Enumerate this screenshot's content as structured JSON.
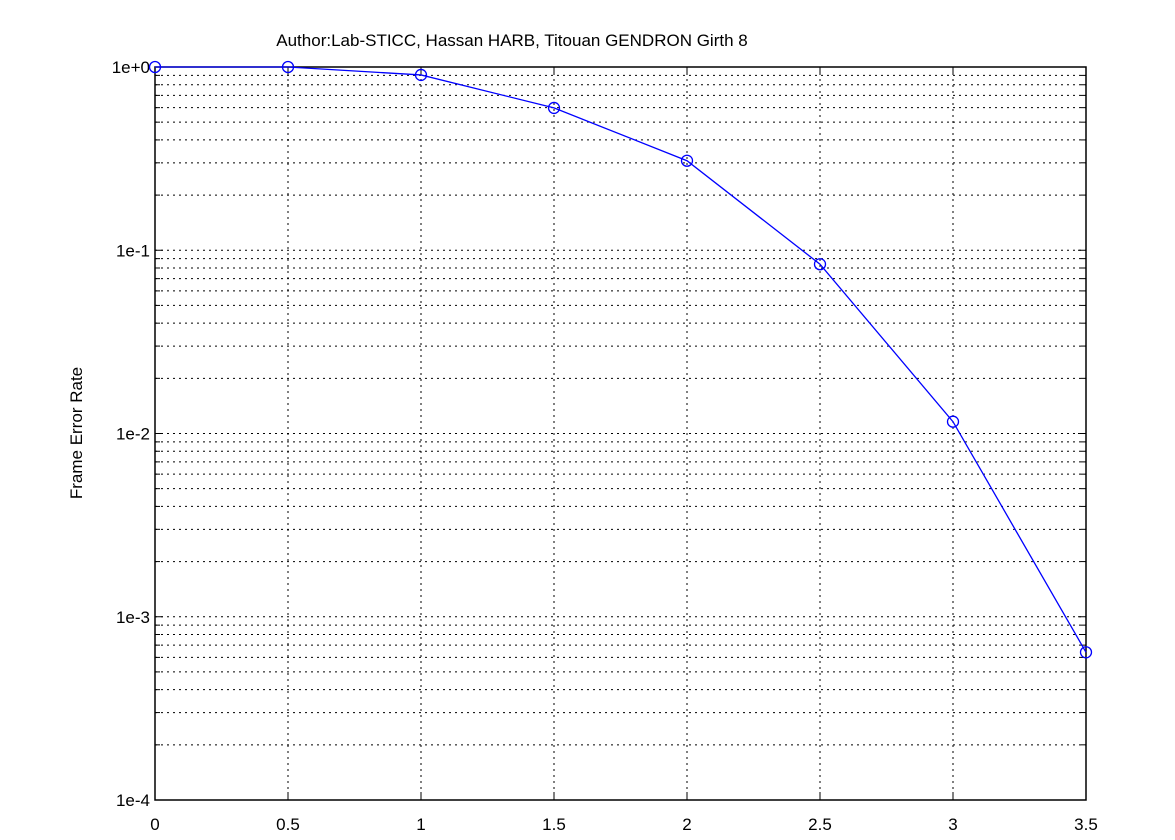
{
  "chart_data": {
    "type": "line",
    "title": "Author:Lab-STICC, Hassan HARB, Titouan GENDRON Girth 8",
    "xlabel": "",
    "ylabel": "Frame Error Rate",
    "xlim": [
      0,
      3.5
    ],
    "ylim": [
      0.0001,
      1
    ],
    "yscale": "log",
    "grid": true,
    "x_ticks": [
      "0",
      "0.5",
      "1",
      "1.5",
      "2",
      "2.5",
      "3",
      "3.5"
    ],
    "y_ticks": [
      "1e-4",
      "1e-3",
      "1e-2",
      "1e-1",
      "1e+0"
    ],
    "series": [
      {
        "color": "#0000ff",
        "marker": "circle",
        "x": [
          0,
          0.5,
          1,
          1.5,
          2,
          2.5,
          3,
          3.5
        ],
        "y": [
          1.0,
          1.0,
          0.905,
          0.598,
          0.308,
          0.0839,
          0.0116,
          0.00064
        ]
      }
    ]
  }
}
